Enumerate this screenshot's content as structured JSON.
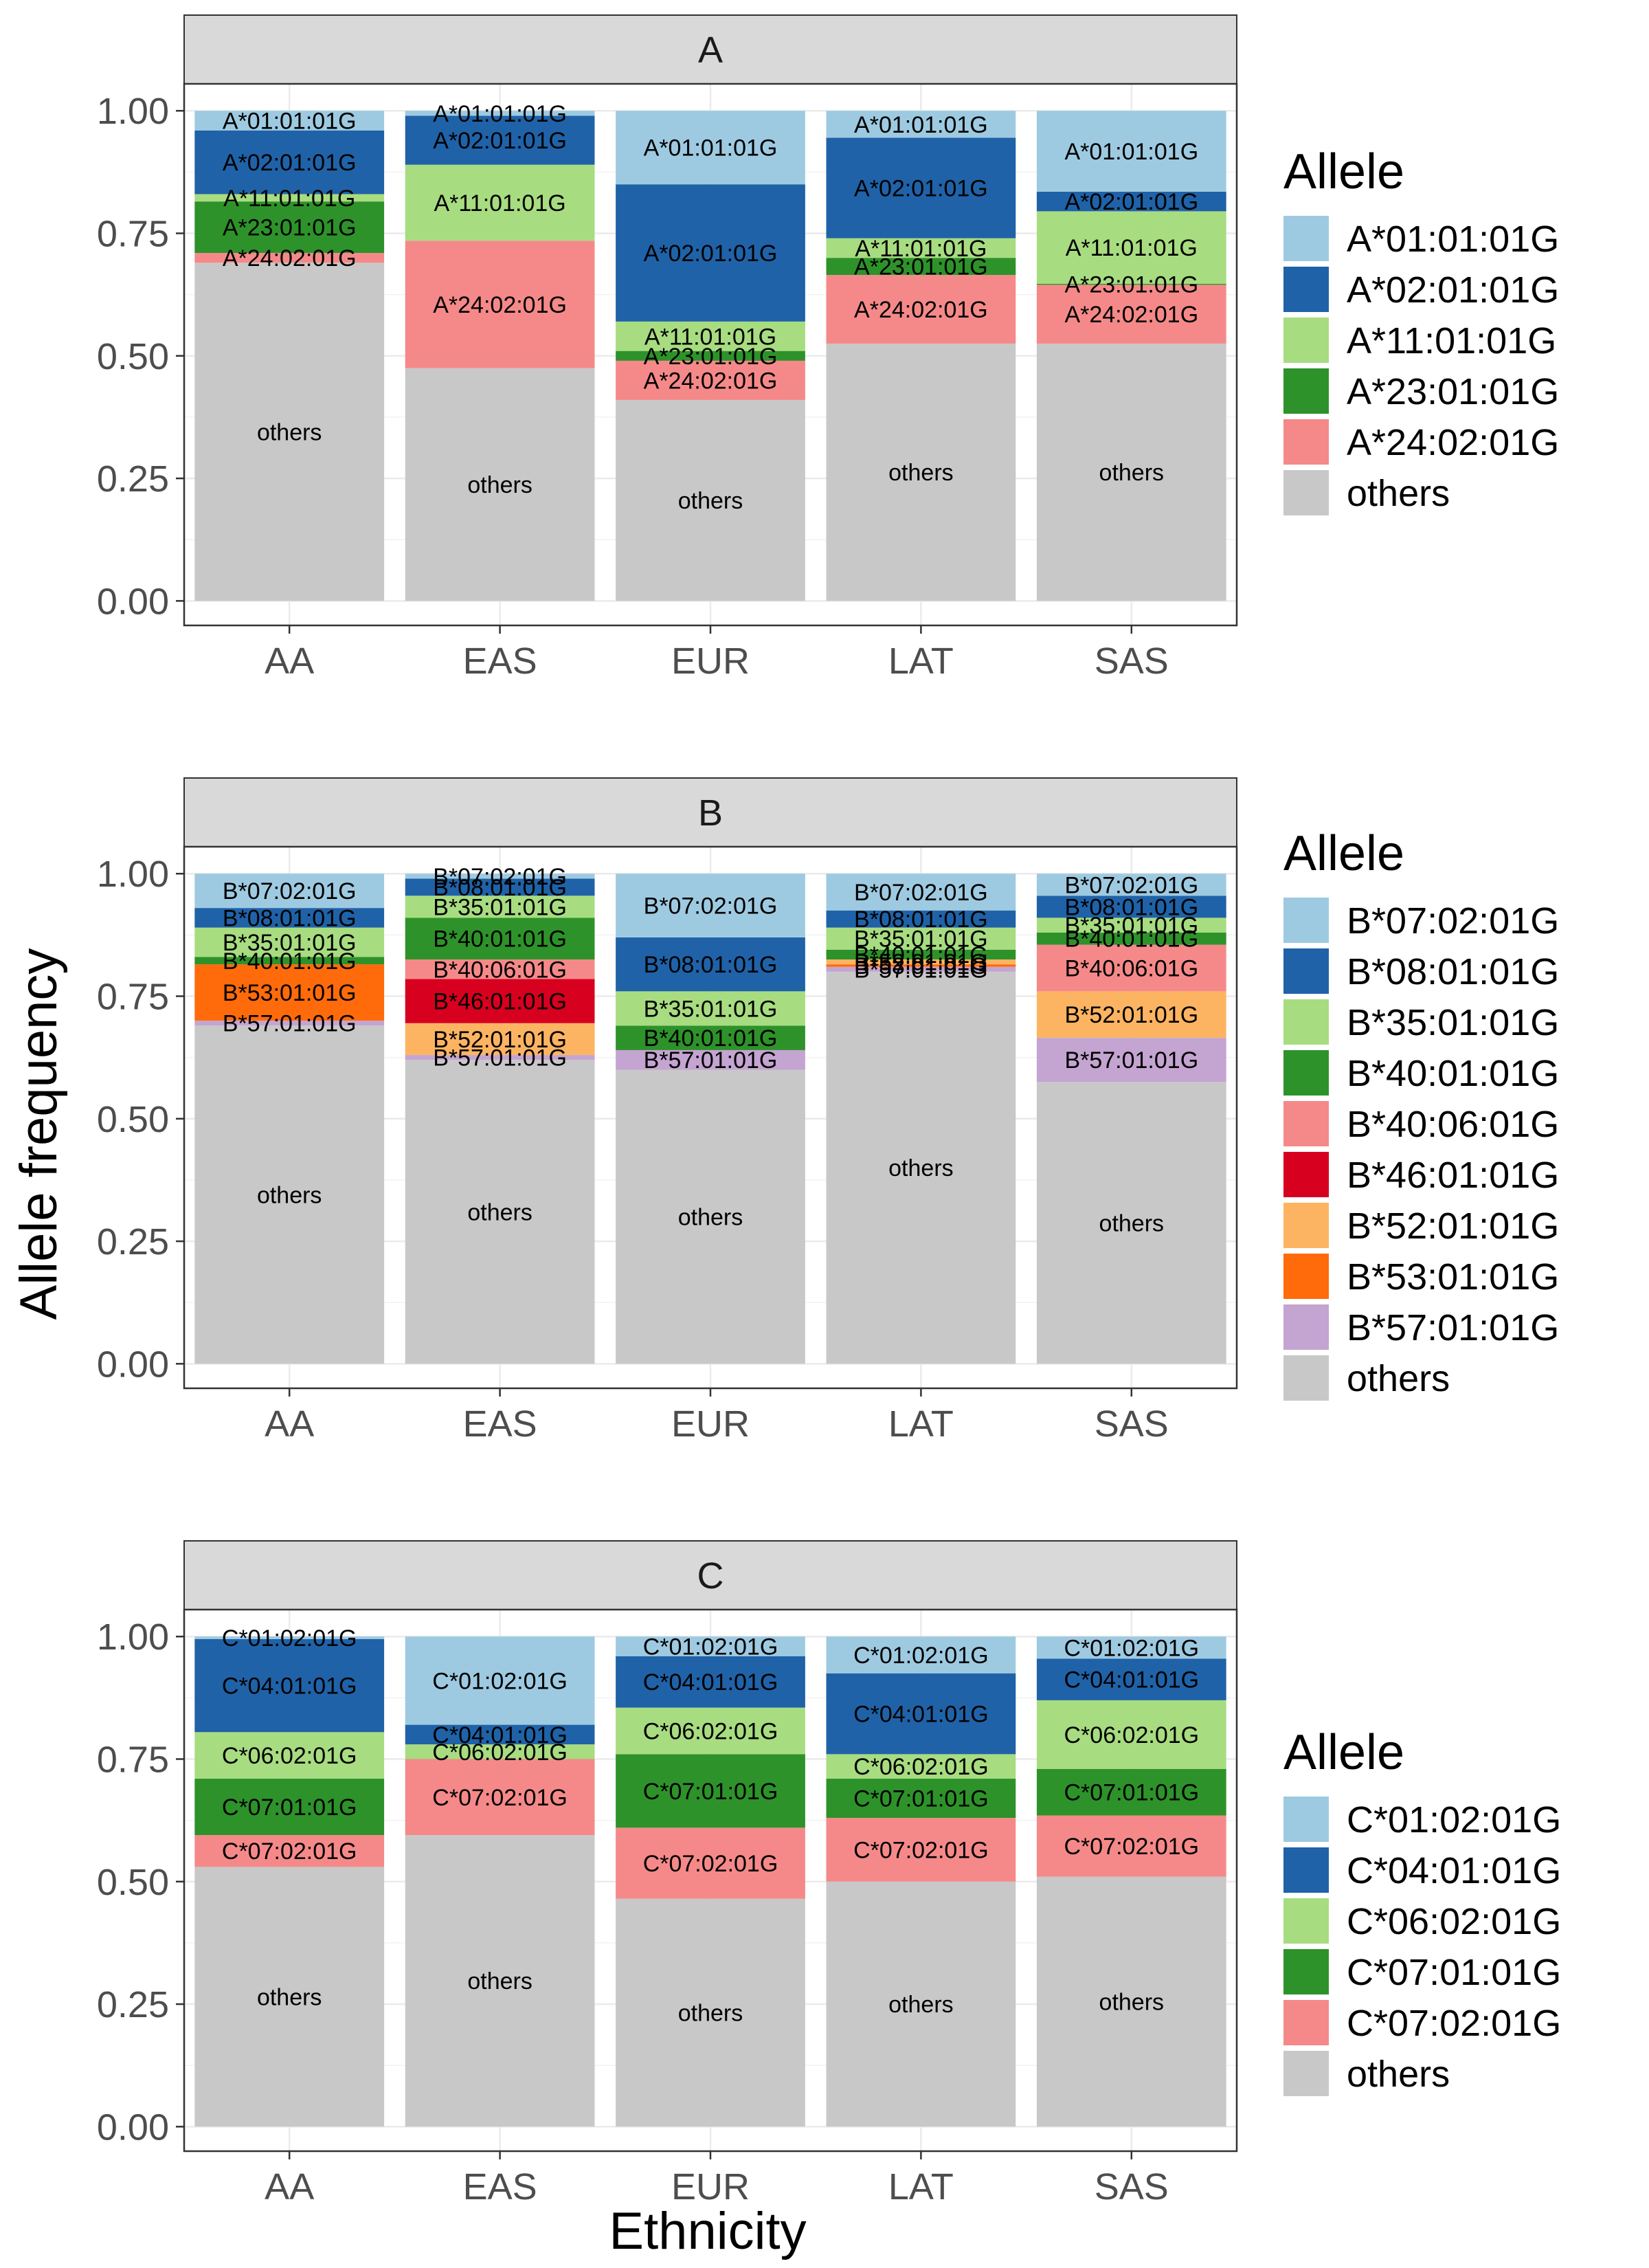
{
  "chart_data": {
    "type": "bar",
    "stacked": true,
    "xlabel": "Ethnicity",
    "ylabel": "Allele frequency",
    "categories": [
      "AA",
      "EAS",
      "EUR",
      "LAT",
      "SAS"
    ],
    "ylim": [
      0,
      1.0
    ],
    "y_ticks": [
      "0.00",
      "0.25",
      "0.50",
      "0.75",
      "1.00"
    ],
    "grid": true,
    "legend_title": "Allele",
    "legend_position": "right",
    "panels": [
      {
        "strip": "A",
        "legend": [
          "A*01:01:01G",
          "A*02:01:01G",
          "A*11:01:01G",
          "A*23:01:01G",
          "A*24:02:01G",
          "others"
        ],
        "colors": [
          "#9ECAE1",
          "#1F62A8",
          "#A8DC80",
          "#2E922A",
          "#F58989",
          "#C8C8C8"
        ],
        "stack_order": [
          "others",
          "A*24:02:01G",
          "A*23:01:01G",
          "A*11:01:01G",
          "A*02:01:01G",
          "A*01:01:01G"
        ],
        "series": [
          {
            "name": "others",
            "values": [
              0.69,
              0.475,
              0.41,
              0.525,
              0.525
            ]
          },
          {
            "name": "A*24:02:01G",
            "values": [
              0.02,
              0.26,
              0.08,
              0.14,
              0.12
            ]
          },
          {
            "name": "A*23:01:01G",
            "values": [
              0.105,
              0.0,
              0.02,
              0.035,
              0.002
            ]
          },
          {
            "name": "A*11:01:01G",
            "values": [
              0.015,
              0.155,
              0.06,
              0.04,
              0.148
            ]
          },
          {
            "name": "A*02:01:01G",
            "values": [
              0.13,
              0.1,
              0.28,
              0.205,
              0.04
            ]
          },
          {
            "name": "A*01:01:01G",
            "values": [
              0.04,
              0.01,
              0.15,
              0.055,
              0.165
            ]
          }
        ]
      },
      {
        "strip": "B",
        "legend": [
          "B*07:02:01G",
          "B*08:01:01G",
          "B*35:01:01G",
          "B*40:01:01G",
          "B*40:06:01G",
          "B*46:01:01G",
          "B*52:01:01G",
          "B*53:01:01G",
          "B*57:01:01G",
          "others"
        ],
        "colors": [
          "#9ECAE1",
          "#1F62A8",
          "#A8DC80",
          "#2E922A",
          "#F58989",
          "#D7001F",
          "#FDB462",
          "#FF6B0A",
          "#C4A4D1",
          "#C8C8C8"
        ],
        "stack_order": [
          "others",
          "B*57:01:01G",
          "B*53:01:01G",
          "B*52:01:01G",
          "B*46:01:01G",
          "B*40:06:01G",
          "B*40:01:01G",
          "B*35:01:01G",
          "B*08:01:01G",
          "B*07:02:01G"
        ],
        "series": [
          {
            "name": "others",
            "values": [
              0.69,
              0.62,
              0.6,
              0.8,
              0.575
            ]
          },
          {
            "name": "B*57:01:01G",
            "values": [
              0.01,
              0.01,
              0.04,
              0.01,
              0.09
            ]
          },
          {
            "name": "B*53:01:01G",
            "values": [
              0.115,
              0.0,
              0.0,
              0.005,
              0.0
            ]
          },
          {
            "name": "B*52:01:01G",
            "values": [
              0.0,
              0.065,
              0.0,
              0.01,
              0.095
            ]
          },
          {
            "name": "B*46:01:01G",
            "values": [
              0.0,
              0.09,
              0.0,
              0.0,
              0.0
            ]
          },
          {
            "name": "B*40:06:01G",
            "values": [
              0.0,
              0.04,
              0.0,
              0.0,
              0.095
            ]
          },
          {
            "name": "B*40:01:01G",
            "values": [
              0.015,
              0.085,
              0.05,
              0.02,
              0.025
            ]
          },
          {
            "name": "B*35:01:01G",
            "values": [
              0.06,
              0.045,
              0.07,
              0.045,
              0.03
            ]
          },
          {
            "name": "B*08:01:01G",
            "values": [
              0.04,
              0.035,
              0.11,
              0.035,
              0.045
            ]
          },
          {
            "name": "B*07:02:01G",
            "values": [
              0.07,
              0.01,
              0.13,
              0.075,
              0.045
            ]
          }
        ]
      },
      {
        "strip": "C",
        "legend": [
          "C*01:02:01G",
          "C*04:01:01G",
          "C*06:02:01G",
          "C*07:01:01G",
          "C*07:02:01G",
          "others"
        ],
        "colors": [
          "#9ECAE1",
          "#1F62A8",
          "#A8DC80",
          "#2E922A",
          "#F58989",
          "#C8C8C8"
        ],
        "stack_order": [
          "others",
          "C*07:02:01G",
          "C*07:01:01G",
          "C*06:02:01G",
          "C*04:01:01G",
          "C*01:02:01G"
        ],
        "series": [
          {
            "name": "others",
            "values": [
              0.53,
              0.595,
              0.465,
              0.5,
              0.51
            ]
          },
          {
            "name": "C*07:02:01G",
            "values": [
              0.065,
              0.155,
              0.145,
              0.13,
              0.125
            ]
          },
          {
            "name": "C*07:01:01G",
            "values": [
              0.115,
              0.0,
              0.15,
              0.08,
              0.095
            ]
          },
          {
            "name": "C*06:02:01G",
            "values": [
              0.095,
              0.03,
              0.095,
              0.05,
              0.14
            ]
          },
          {
            "name": "C*04:01:01G",
            "values": [
              0.19,
              0.04,
              0.105,
              0.165,
              0.085
            ]
          },
          {
            "name": "C*01:02:01G",
            "values": [
              0.005,
              0.18,
              0.04,
              0.075,
              0.045
            ]
          }
        ]
      }
    ]
  }
}
